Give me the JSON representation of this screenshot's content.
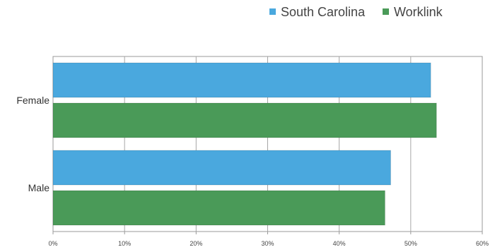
{
  "chart_data": {
    "type": "bar",
    "orientation": "horizontal",
    "categories": [
      "Female",
      "Male"
    ],
    "series": [
      {
        "name": "South Carolina",
        "values": [
          52.8,
          47.2
        ],
        "color": "#4aa8de"
      },
      {
        "name": "Worklink",
        "values": [
          53.6,
          46.4
        ],
        "color": "#4a9a58"
      }
    ],
    "xlim": [
      0,
      60
    ],
    "xticks": [
      "0%",
      "10%",
      "20%",
      "30%",
      "40%",
      "50%",
      "60%"
    ],
    "grid": true,
    "legend_position": "top-right",
    "title": "",
    "xlabel": "",
    "ylabel": ""
  }
}
